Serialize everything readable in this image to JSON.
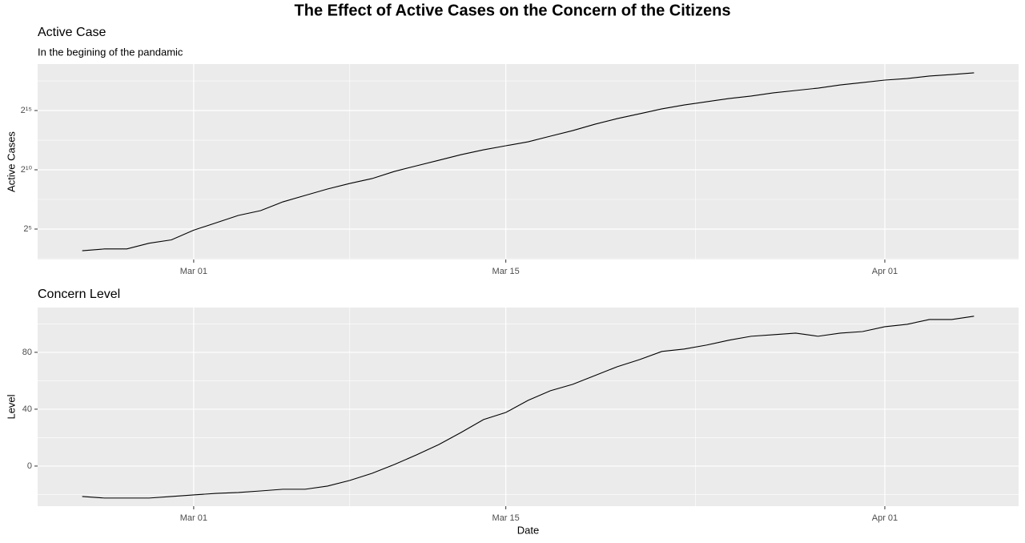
{
  "title": "The Effect of Active Cases on the Concern of the Citizens",
  "chart_data": [
    {
      "type": "line",
      "title": "Active Case",
      "subtitle": "In the begining of the pandamic",
      "ylabel": "Active Cases",
      "categories": [
        "Feb 25",
        "Feb 26",
        "Feb 27",
        "Feb 28",
        "Feb 29",
        "Mar 01",
        "Mar 02",
        "Mar 03",
        "Mar 04",
        "Mar 05",
        "Mar 06",
        "Mar 07",
        "Mar 08",
        "Mar 09",
        "Mar 10",
        "Mar 11",
        "Mar 12",
        "Mar 13",
        "Mar 14",
        "Mar 15",
        "Mar 16",
        "Mar 17",
        "Mar 18",
        "Mar 19",
        "Mar 20",
        "Mar 21",
        "Mar 22",
        "Mar 23",
        "Mar 24",
        "Mar 25",
        "Mar 26",
        "Mar 27",
        "Mar 28",
        "Mar 29",
        "Mar 30",
        "Mar 31",
        "Apr 01",
        "Apr 02",
        "Apr 03",
        "Apr 04",
        "Apr 05"
      ],
      "values": [
        9,
        10,
        10,
        14,
        17,
        30,
        46,
        71,
        94,
        157,
        229,
        333,
        461,
        613,
        930,
        1296,
        1795,
        2487,
        3300,
        4180,
        5260,
        7330,
        10150,
        14760,
        20450,
        27150,
        36100,
        45400,
        54700,
        66000,
        76300,
        92000,
        105800,
        121600,
        146600,
        168400,
        194500,
        213000,
        246000,
        269000,
        297000
      ],
      "color": "#000000",
      "yscale": "log2",
      "ylim": [
        5.4,
        496000
      ],
      "yticks": [
        {
          "value": 32,
          "label": "2⁵"
        },
        {
          "value": 1024,
          "label": "2¹⁰"
        },
        {
          "value": 32768,
          "label": "2¹⁵"
        }
      ],
      "xticks": [
        "Mar 01",
        "Mar 15",
        "Apr 01"
      ],
      "grid": true
    },
    {
      "type": "line",
      "title": "Concern Level",
      "ylabel": "Level",
      "xlabel": "Date",
      "categories": [
        "Feb 25",
        "Feb 26",
        "Feb 27",
        "Feb 28",
        "Feb 29",
        "Mar 01",
        "Mar 02",
        "Mar 03",
        "Mar 04",
        "Mar 05",
        "Mar 06",
        "Mar 07",
        "Mar 08",
        "Mar 09",
        "Mar 10",
        "Mar 11",
        "Mar 12",
        "Mar 13",
        "Mar 14",
        "Mar 15",
        "Mar 16",
        "Mar 17",
        "Mar 18",
        "Mar 19",
        "Mar 20",
        "Mar 21",
        "Mar 22",
        "Mar 23",
        "Mar 24",
        "Mar 25",
        "Mar 26",
        "Mar 27",
        "Mar 28",
        "Mar 29",
        "Mar 30",
        "Mar 31",
        "Apr 01",
        "Apr 02",
        "Apr 03",
        "Apr 04",
        "Apr 05"
      ],
      "values": [
        -21.4,
        -22.5,
        -22.5,
        -22.5,
        -21.4,
        -20.3,
        -19.2,
        -18.6,
        -17.5,
        -16.3,
        -16.3,
        -14.1,
        -10.1,
        -5.1,
        1.1,
        7.9,
        15.2,
        23.7,
        32.7,
        37.7,
        46.2,
        53,
        57.5,
        63.7,
        69.9,
        74.9,
        80.6,
        82.3,
        85.1,
        88.5,
        91.3,
        92.4,
        93.5,
        91.3,
        93.5,
        94.6,
        98,
        99.7,
        103.1,
        103.1,
        105.4
      ],
      "color": "#000000",
      "ylim": [
        -28.2,
        111.5
      ],
      "yticks": [
        0,
        40,
        80
      ],
      "xticks": [
        "Mar 01",
        "Mar 15",
        "Apr 01"
      ],
      "grid": true
    }
  ]
}
